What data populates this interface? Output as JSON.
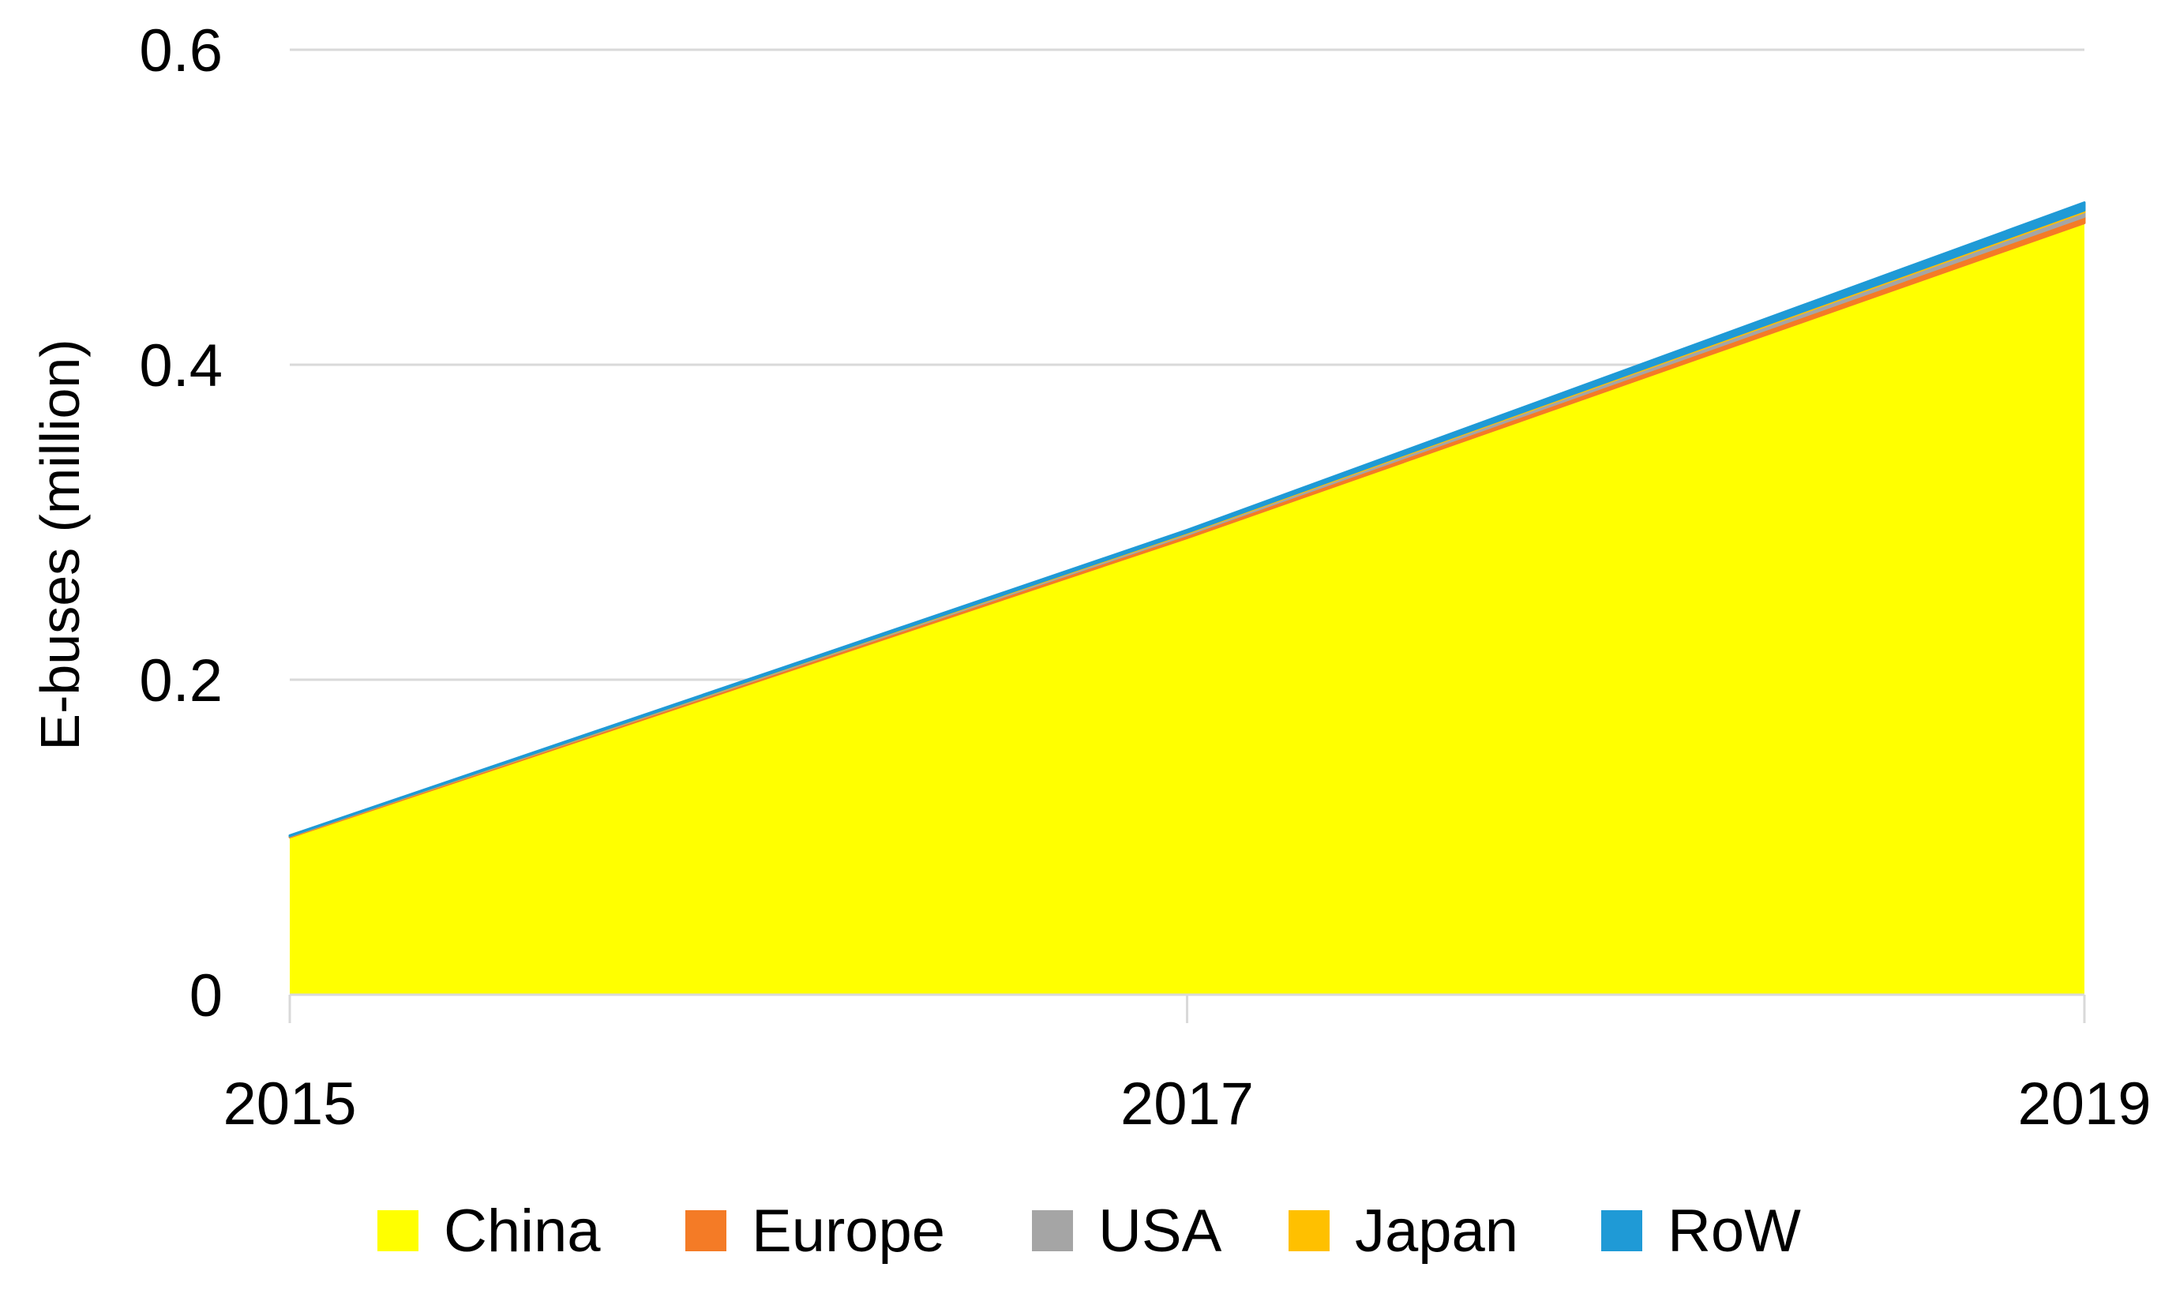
{
  "chart_data": {
    "type": "area",
    "stacked": true,
    "title": "",
    "xlabel": "",
    "ylabel": "E-buses (million)",
    "x": [
      "2015",
      "2017",
      "2019"
    ],
    "x_tick_labels": [
      "2015",
      "2017",
      "2019"
    ],
    "ylim": [
      0,
      0.6
    ],
    "y_ticks": [
      0,
      0.2,
      0.4,
      0.6
    ],
    "y_tick_labels": [
      "0",
      "0.2",
      "0.4",
      "0.6"
    ],
    "grid": "horizontal",
    "legend_position": "bottom",
    "series": [
      {
        "name": "China",
        "color": "#FFFF00",
        "values": [
          0.1,
          0.29,
          0.49
        ]
      },
      {
        "name": "Europe",
        "color": "#F47B26",
        "values": [
          0.0005,
          0.002,
          0.004
        ]
      },
      {
        "name": "USA",
        "color": "#A5A5A5",
        "values": [
          0.0002,
          0.001,
          0.003
        ]
      },
      {
        "name": "Japan",
        "color": "#FFC000",
        "values": [
          0.0001,
          0.0005,
          0.001
        ]
      },
      {
        "name": "RoW",
        "color": "#1F9AD6",
        "values": [
          0.0003,
          0.0015,
          0.005
        ]
      }
    ]
  }
}
